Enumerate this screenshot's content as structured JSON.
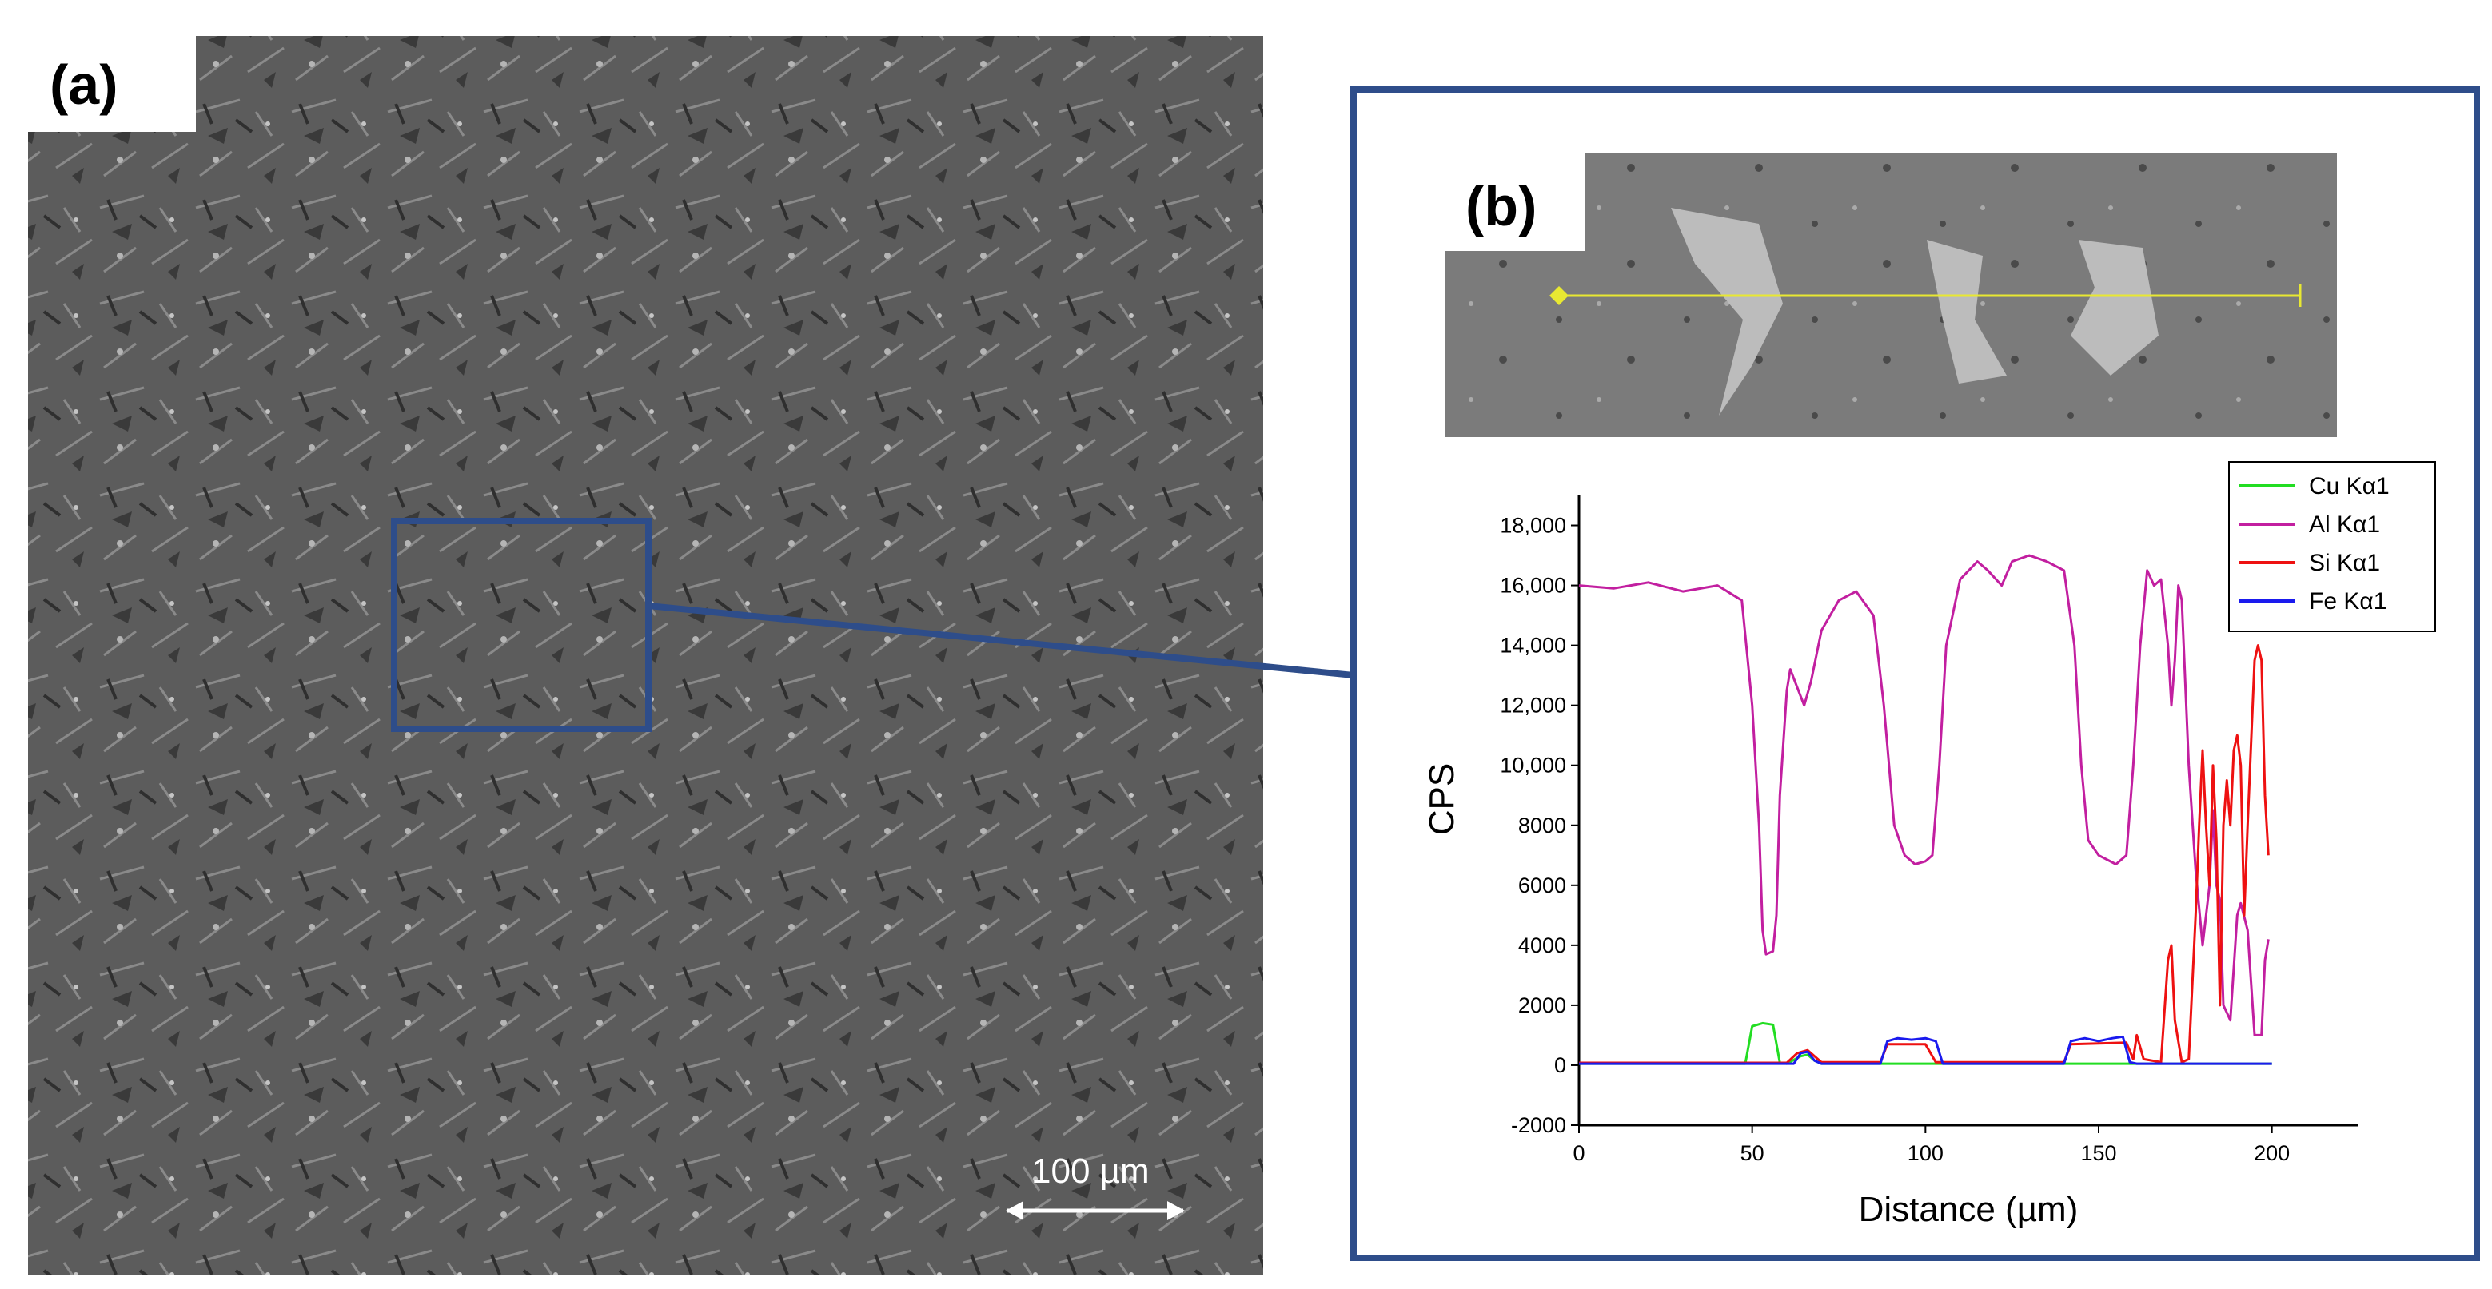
{
  "panel_a": {
    "label": "(a)",
    "scale_bar": "100 µm"
  },
  "panel_b": {
    "label": "(b)"
  },
  "colors": {
    "Cu": "#22dd22",
    "Al": "#c21fa0",
    "Si": "#ee1111",
    "Fe": "#1a1aee",
    "frame": "#2e4d8a",
    "scan_line": "#e8e832"
  },
  "chart_data": {
    "type": "line",
    "xlabel": "Distance (µm)",
    "ylabel": "CPS",
    "xlim": [
      0,
      225
    ],
    "ylim": [
      -2000,
      19000
    ],
    "xticks": [
      0,
      50,
      100,
      150,
      200
    ],
    "xtick_labels": [
      "0",
      "50",
      "100",
      "150",
      "200"
    ],
    "yticks": [
      -2000,
      0,
      2000,
      4000,
      6000,
      8000,
      10000,
      12000,
      14000,
      16000,
      18000
    ],
    "ytick_labels": [
      "-2000",
      "0",
      "2000",
      "4000",
      "6000",
      "8000",
      "10,000",
      "12,000",
      "14,000",
      "16,000",
      "18,000"
    ],
    "legend_position": "top-right",
    "series": [
      {
        "name": "Cu Kα1",
        "color": "#22dd22",
        "points": [
          [
            0,
            50
          ],
          [
            48,
            50
          ],
          [
            50,
            1300
          ],
          [
            53,
            1400
          ],
          [
            56,
            1350
          ],
          [
            58,
            80
          ],
          [
            60,
            50
          ],
          [
            64,
            300
          ],
          [
            66,
            350
          ],
          [
            68,
            150
          ],
          [
            70,
            50
          ],
          [
            200,
            50
          ]
        ]
      },
      {
        "name": "Al Kα1",
        "color": "#c21fa0",
        "points": [
          [
            0,
            16000
          ],
          [
            10,
            15900
          ],
          [
            20,
            16100
          ],
          [
            30,
            15800
          ],
          [
            40,
            16000
          ],
          [
            47,
            15500
          ],
          [
            50,
            12000
          ],
          [
            52,
            8000
          ],
          [
            53,
            4500
          ],
          [
            54,
            3700
          ],
          [
            56,
            3800
          ],
          [
            57,
            5000
          ],
          [
            58,
            9000
          ],
          [
            60,
            12500
          ],
          [
            61,
            13200
          ],
          [
            63,
            12600
          ],
          [
            65,
            12000
          ],
          [
            67,
            12800
          ],
          [
            70,
            14500
          ],
          [
            75,
            15500
          ],
          [
            80,
            15800
          ],
          [
            85,
            15000
          ],
          [
            88,
            12000
          ],
          [
            91,
            8000
          ],
          [
            94,
            7000
          ],
          [
            97,
            6700
          ],
          [
            100,
            6800
          ],
          [
            102,
            7000
          ],
          [
            104,
            10000
          ],
          [
            106,
            14000
          ],
          [
            110,
            16200
          ],
          [
            115,
            16800
          ],
          [
            118,
            16500
          ],
          [
            122,
            16000
          ],
          [
            125,
            16800
          ],
          [
            130,
            17000
          ],
          [
            135,
            16800
          ],
          [
            140,
            16500
          ],
          [
            143,
            14000
          ],
          [
            145,
            10000
          ],
          [
            147,
            7500
          ],
          [
            150,
            7000
          ],
          [
            155,
            6700
          ],
          [
            158,
            7000
          ],
          [
            160,
            10000
          ],
          [
            162,
            14000
          ],
          [
            164,
            16500
          ],
          [
            166,
            16000
          ],
          [
            168,
            16200
          ],
          [
            170,
            14000
          ],
          [
            171,
            12000
          ],
          [
            172,
            13500
          ],
          [
            173,
            16000
          ],
          [
            174,
            15500
          ],
          [
            176,
            10000
          ],
          [
            178,
            6500
          ],
          [
            180,
            4000
          ],
          [
            182,
            6000
          ],
          [
            183,
            8500
          ],
          [
            184,
            6000
          ],
          [
            185,
            5500
          ],
          [
            186,
            2000
          ],
          [
            188,
            1500
          ],
          [
            190,
            5000
          ],
          [
            191,
            5400
          ],
          [
            193,
            4500
          ],
          [
            195,
            1000
          ],
          [
            197,
            1000
          ],
          [
            198,
            3500
          ],
          [
            199,
            4200
          ]
        ]
      },
      {
        "name": "Si Kα1",
        "color": "#ee1111",
        "points": [
          [
            0,
            80
          ],
          [
            50,
            80
          ],
          [
            56,
            80
          ],
          [
            60,
            80
          ],
          [
            63,
            400
          ],
          [
            66,
            500
          ],
          [
            70,
            100
          ],
          [
            87,
            100
          ],
          [
            89,
            700
          ],
          [
            100,
            700
          ],
          [
            103,
            100
          ],
          [
            140,
            100
          ],
          [
            142,
            700
          ],
          [
            158,
            750
          ],
          [
            160,
            200
          ],
          [
            161,
            1000
          ],
          [
            163,
            200
          ],
          [
            168,
            100
          ],
          [
            170,
            3500
          ],
          [
            171,
            4000
          ],
          [
            172,
            1500
          ],
          [
            174,
            100
          ],
          [
            176,
            200
          ],
          [
            178,
            5000
          ],
          [
            179,
            8000
          ],
          [
            180,
            10500
          ],
          [
            181,
            8000
          ],
          [
            182,
            6000
          ],
          [
            183,
            10000
          ],
          [
            184,
            7500
          ],
          [
            185,
            2000
          ],
          [
            186,
            8000
          ],
          [
            187,
            9500
          ],
          [
            188,
            8000
          ],
          [
            189,
            10500
          ],
          [
            190,
            11000
          ],
          [
            191,
            10000
          ],
          [
            192,
            5000
          ],
          [
            193,
            8000
          ],
          [
            195,
            13500
          ],
          [
            196,
            14000
          ],
          [
            197,
            13500
          ],
          [
            198,
            9000
          ],
          [
            199,
            7000
          ]
        ]
      },
      {
        "name": "Fe Kα1",
        "color": "#1a1aee",
        "points": [
          [
            0,
            50
          ],
          [
            62,
            50
          ],
          [
            64,
            400
          ],
          [
            66,
            450
          ],
          [
            68,
            150
          ],
          [
            70,
            50
          ],
          [
            87,
            50
          ],
          [
            89,
            800
          ],
          [
            92,
            900
          ],
          [
            96,
            850
          ],
          [
            100,
            900
          ],
          [
            103,
            800
          ],
          [
            105,
            50
          ],
          [
            140,
            50
          ],
          [
            142,
            800
          ],
          [
            146,
            900
          ],
          [
            150,
            800
          ],
          [
            154,
            900
          ],
          [
            157,
            950
          ],
          [
            159,
            100
          ],
          [
            161,
            50
          ],
          [
            200,
            50
          ]
        ]
      }
    ]
  }
}
